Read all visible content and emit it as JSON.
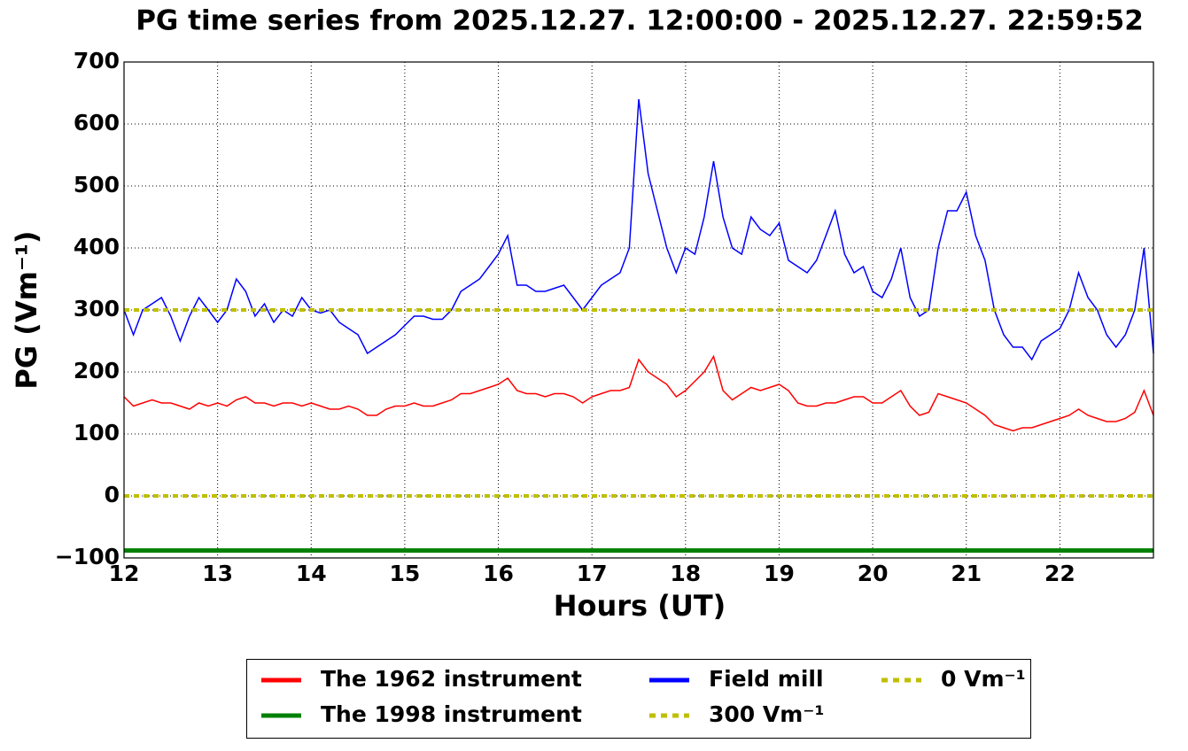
{
  "chart_data": {
    "type": "line",
    "title": "PG time series from 2025.12.27. 12:00:00 - 2025.12.27. 22:59:52",
    "xlabel": "Hours (UT)",
    "ylabel": "PG (Vm⁻¹)",
    "xlim": [
      12,
      23
    ],
    "xticks": [
      12,
      13,
      14,
      15,
      16,
      17,
      18,
      19,
      20,
      21,
      22
    ],
    "ylim": [
      -100,
      700
    ],
    "yticks": [
      {
        "value": -100,
        "label": "−100"
      },
      0,
      100,
      200,
      300,
      400,
      500,
      600,
      700
    ],
    "grid": true,
    "x": [
      12,
      12.1,
      12.2,
      12.3,
      12.4,
      12.5,
      12.6,
      12.7,
      12.8,
      12.9,
      13,
      13.1,
      13.2,
      13.3,
      13.4,
      13.5,
      13.6,
      13.7,
      13.8,
      13.9,
      14,
      14.1,
      14.2,
      14.3,
      14.4,
      14.5,
      14.6,
      14.7,
      14.8,
      14.9,
      15,
      15.1,
      15.2,
      15.3,
      15.4,
      15.5,
      15.6,
      15.7,
      15.8,
      15.9,
      16,
      16.1,
      16.2,
      16.3,
      16.4,
      16.5,
      16.6,
      16.7,
      16.8,
      16.9,
      17,
      17.1,
      17.2,
      17.3,
      17.4,
      17.5,
      17.6,
      17.7,
      17.8,
      17.9,
      18,
      18.1,
      18.2,
      18.3,
      18.4,
      18.5,
      18.6,
      18.7,
      18.8,
      18.9,
      19,
      19.1,
      19.2,
      19.3,
      19.4,
      19.5,
      19.6,
      19.7,
      19.8,
      19.9,
      20,
      20.1,
      20.2,
      20.3,
      20.4,
      20.5,
      20.6,
      20.7,
      20.8,
      20.9,
      21,
      21.1,
      21.2,
      21.3,
      21.4,
      21.5,
      21.6,
      21.7,
      21.8,
      21.9,
      22,
      22.1,
      22.2,
      22.3,
      22.4,
      22.5,
      22.6,
      22.7,
      22.8,
      22.9,
      23
    ],
    "series": [
      {
        "name": "The 1962 instrument",
        "color": "#ff0000",
        "values": [
          160,
          145,
          150,
          155,
          150,
          150,
          145,
          140,
          150,
          145,
          150,
          145,
          155,
          160,
          150,
          150,
          145,
          150,
          150,
          145,
          150,
          145,
          140,
          140,
          145,
          140,
          130,
          130,
          140,
          145,
          145,
          150,
          145,
          145,
          150,
          155,
          165,
          165,
          170,
          175,
          180,
          190,
          170,
          165,
          165,
          160,
          165,
          165,
          160,
          150,
          160,
          165,
          170,
          170,
          175,
          220,
          200,
          190,
          180,
          160,
          170,
          185,
          200,
          225,
          170,
          155,
          165,
          175,
          170,
          175,
          180,
          170,
          150,
          145,
          145,
          150,
          150,
          155,
          160,
          160,
          150,
          150,
          160,
          170,
          145,
          130,
          135,
          165,
          160,
          155,
          150,
          140,
          130,
          115,
          110,
          105,
          110,
          110,
          115,
          120,
          125,
          130,
          140,
          130,
          125,
          120,
          120,
          125,
          135,
          170,
          130
        ]
      },
      {
        "name": "The 1998 instrument",
        "color": "#008000",
        "values": [
          -88,
          -88,
          -88,
          -88,
          -88,
          -88,
          -88,
          -88,
          -88,
          -88,
          -88,
          -88,
          -88,
          -88,
          -88,
          -88,
          -88,
          -88,
          -88,
          -88,
          -88,
          -88,
          -88,
          -88,
          -88,
          -88,
          -88,
          -88,
          -88,
          -88,
          -88,
          -88,
          -88,
          -88,
          -88,
          -88,
          -88,
          -88,
          -88,
          -88,
          -88,
          -88,
          -88,
          -88,
          -88,
          -88,
          -88,
          -88,
          -88,
          -88,
          -88,
          -88,
          -88,
          -88,
          -88,
          -88,
          -88,
          -88,
          -88,
          -88,
          -88,
          -88,
          -88,
          -88,
          -88,
          -88,
          -88,
          -88,
          -88,
          -88,
          -88,
          -88,
          -88,
          -88,
          -88,
          -88,
          -88,
          -88,
          -88,
          -88,
          -88,
          -88,
          -88,
          -88,
          -88,
          -88,
          -88,
          -88,
          -88,
          -88,
          -88,
          -88,
          -88,
          -88,
          -88,
          -88,
          -88,
          -88,
          -88,
          -88,
          -88,
          -88,
          -88,
          -88,
          -88,
          -88,
          -88,
          -88,
          -88,
          -88,
          -88
        ]
      },
      {
        "name": "Field mill",
        "color": "#0000ff",
        "values": [
          300,
          260,
          300,
          310,
          320,
          290,
          250,
          290,
          320,
          300,
          280,
          300,
          350,
          330,
          290,
          310,
          280,
          300,
          290,
          320,
          300,
          295,
          300,
          280,
          270,
          260,
          230,
          240,
          250,
          260,
          275,
          290,
          290,
          285,
          285,
          300,
          330,
          340,
          350,
          370,
          390,
          420,
          340,
          340,
          330,
          330,
          335,
          340,
          320,
          300,
          320,
          340,
          350,
          360,
          400,
          640,
          520,
          460,
          400,
          360,
          400,
          390,
          450,
          540,
          450,
          400,
          390,
          450,
          430,
          420,
          440,
          380,
          370,
          360,
          380,
          420,
          460,
          390,
          360,
          370,
          330,
          320,
          350,
          400,
          320,
          290,
          300,
          400,
          460,
          460,
          490,
          420,
          380,
          300,
          260,
          240,
          240,
          220,
          250,
          260,
          270,
          300,
          360,
          320,
          300,
          260,
          240,
          260,
          300,
          400,
          230
        ]
      }
    ],
    "reference_lines": [
      {
        "name": "300 Vm⁻¹",
        "value": 300,
        "color": "#bfbf00"
      },
      {
        "name": "0 Vm⁻¹",
        "value": 0,
        "color": "#bfbf00"
      }
    ]
  }
}
